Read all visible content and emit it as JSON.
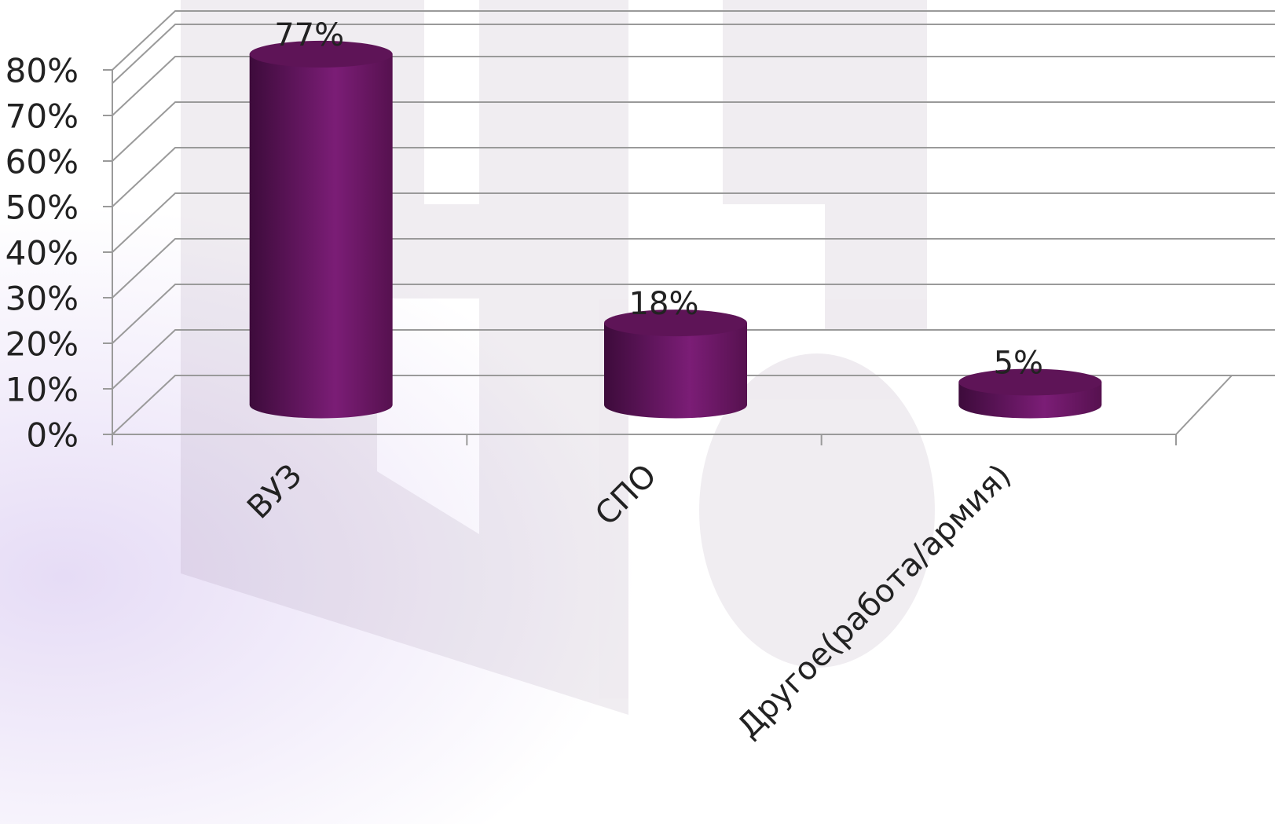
{
  "chart_data": {
    "type": "bar3d",
    "categories": [
      "ВУЗ",
      "СПО",
      "Другое(работа/армия)"
    ],
    "values": [
      77,
      18,
      5
    ],
    "value_labels": [
      "77%",
      "18%",
      "5%"
    ],
    "color": "#6e1868",
    "ylim": [
      0,
      90
    ],
    "yticks": [
      {
        "value": 0,
        "label": "0%"
      },
      {
        "value": 10,
        "label": "10%"
      },
      {
        "value": 20,
        "label": "20%"
      },
      {
        "value": 30,
        "label": "30%"
      },
      {
        "value": 40,
        "label": "40%"
      },
      {
        "value": 50,
        "label": "50%"
      },
      {
        "value": 60,
        "label": "60%"
      },
      {
        "value": 70,
        "label": "70%"
      },
      {
        "value": 80,
        "label": "80%"
      }
    ],
    "grid": true
  }
}
